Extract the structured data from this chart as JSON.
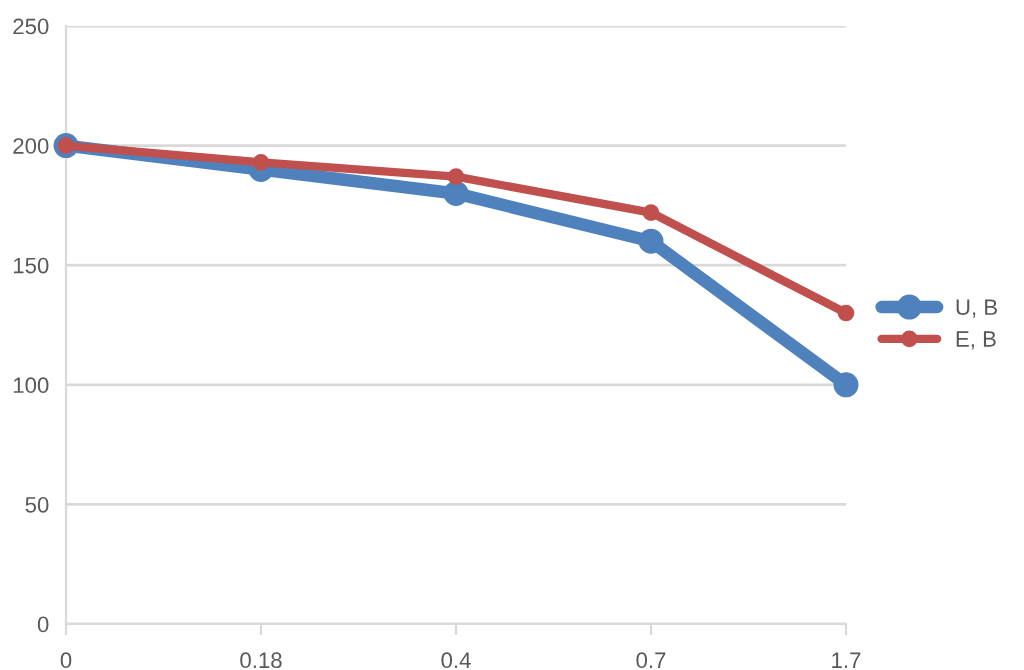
{
  "chart_data": {
    "type": "line",
    "categories": [
      "0",
      "0.18",
      "0.4",
      "0.7",
      "1.7"
    ],
    "series": [
      {
        "name": "U, B",
        "color": "#4f81bd",
        "values": [
          200,
          190,
          180,
          160,
          100
        ]
      },
      {
        "name": "E, B",
        "color": "#c0504d",
        "values": [
          200,
          193,
          187,
          172,
          130
        ]
      }
    ],
    "ylim": [
      0,
      250
    ],
    "yticks": [
      0,
      50,
      100,
      150,
      200,
      250
    ],
    "grid": "y",
    "legend": "right",
    "marker": "circle",
    "line_style": "solid"
  }
}
